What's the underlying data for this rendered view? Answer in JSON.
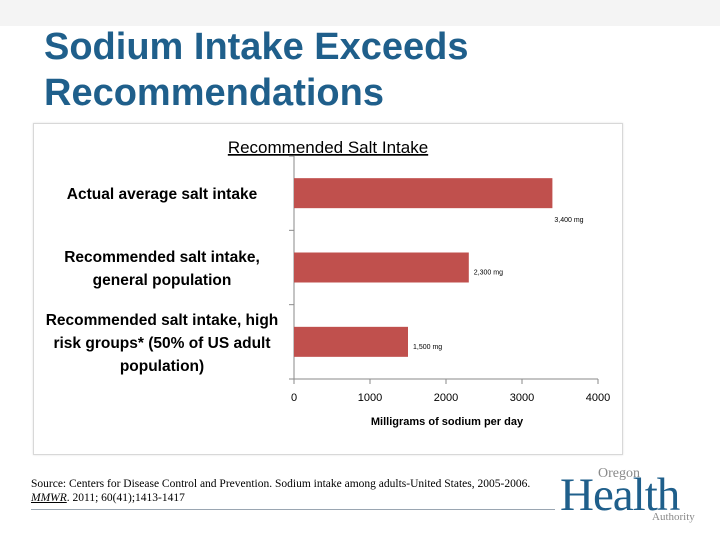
{
  "slide": {
    "title": "Sodium Intake Exceeds Recommendations"
  },
  "chart_data": {
    "type": "bar",
    "orientation": "horizontal",
    "title": "Recommended Salt Intake",
    "xlabel": "Milligrams of sodium per day",
    "ylabel": "",
    "xlim": [
      0,
      4000
    ],
    "xticks": [
      0,
      1000,
      2000,
      3000,
      4000
    ],
    "tick_labels": [
      "0",
      "1000",
      "2000",
      "3000",
      "4000"
    ],
    "grid": false,
    "legend": "none",
    "bar_color": "#c0504d",
    "categories": [
      [
        "Actual average salt intake"
      ],
      [
        "Recommended salt intake,",
        "general population"
      ],
      [
        "Recommended salt intake, high",
        "risk groups* (50% of US adult",
        "population)"
      ]
    ],
    "values": [
      3400,
      2300,
      1500
    ],
    "data_labels": [
      "3,400 mg",
      "2,300 mg",
      "1,500 mg"
    ]
  },
  "source": {
    "line1": "Source: Centers for Disease Control and Prevention. Sodium intake among adults-United States, 2005-2006.",
    "journal": "MMWR",
    "citation": ". 2011; 60(41);1413-1417"
  },
  "logo": {
    "top": "Oregon",
    "main": "Health",
    "bottom": "Authority",
    "color": "#1f5f8b"
  }
}
